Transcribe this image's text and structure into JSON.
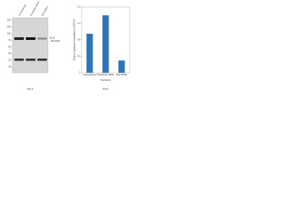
{
  "blot": {
    "lanes": [
      "Untransfected",
      "Scrambled siRNA",
      "DLD siRNA"
    ],
    "markers": [
      "250",
      "130",
      "100",
      "70",
      "55",
      "35",
      "25",
      "15"
    ],
    "target": "DLD",
    "target_size": "~54 kDa",
    "caption": "Fig a"
  },
  "chart_data": {
    "type": "bar",
    "caption": "Fig b",
    "y_label": "Relative Expression (normalized to GAPDH)",
    "x_label": "Samples",
    "categories": [
      "Untransfected",
      "Scrambled siRNA",
      "DLD siRNA"
    ],
    "values": [
      0.95,
      1.4,
      0.3
    ],
    "color": "#2e75b6",
    "ylim": [
      0,
      1.6
    ],
    "yticks": [
      0,
      0.4,
      0.8,
      1.2,
      1.6
    ]
  }
}
